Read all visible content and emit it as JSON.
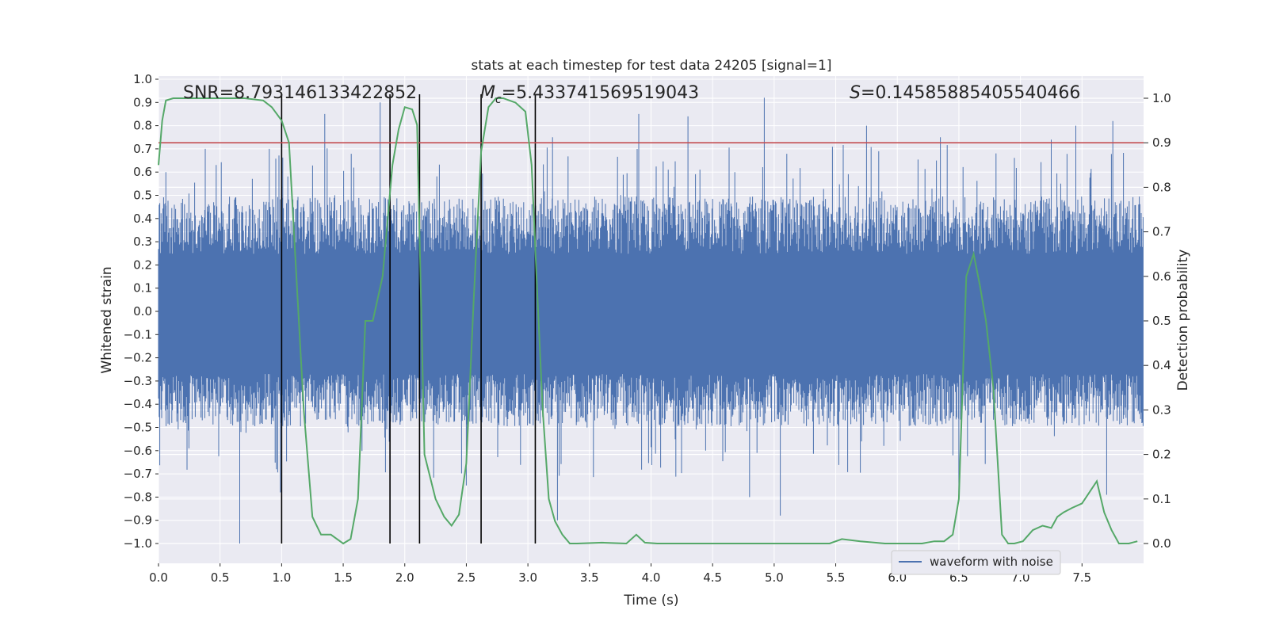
{
  "chart_data": {
    "type": "line",
    "title": "stats at each timestep for test data 24205 [signal=1]",
    "xlabel": "Time (s)",
    "ylabel": "Whitened strain",
    "y2label": "Detection probability",
    "xlim": [
      0.0,
      8.0
    ],
    "ylim": [
      -1.0,
      1.0
    ],
    "y2lim": [
      0.0,
      1.0
    ],
    "grid": true,
    "legend_position": "lower-right",
    "x_ticks": [
      "0.0",
      "0.5",
      "1.0",
      "1.5",
      "2.0",
      "2.5",
      "3.0",
      "3.5",
      "4.0",
      "4.5",
      "5.0",
      "5.5",
      "6.0",
      "6.5",
      "7.0",
      "7.5"
    ],
    "y_ticks": [
      "1.0",
      "0.9",
      "0.8",
      "0.7",
      "0.6",
      "0.5",
      "0.4",
      "0.3",
      "0.2",
      "0.1",
      "0.0",
      "−0.1",
      "−0.2",
      "−0.3",
      "−0.4",
      "−0.5",
      "−0.6",
      "−0.7",
      "−0.8",
      "−0.9",
      "−1.0"
    ],
    "y2_ticks": [
      "1.0",
      "0.9",
      "0.8",
      "0.7",
      "0.6",
      "0.5",
      "0.4",
      "0.3",
      "0.2",
      "0.1",
      "0.0"
    ],
    "annotations": {
      "snr": "SNR=8.793146133422852",
      "mc_symbol": "M",
      "mc_sub": "c",
      "mc_value": "=5.433741569519043",
      "s_symbol": "S",
      "s_value": "=0.14585885405540466"
    },
    "threshold": {
      "y2": 0.9,
      "color": "#c44e52"
    },
    "vertical_markers_x": [
      1.0,
      1.88,
      2.12,
      2.62,
      3.06
    ],
    "waveform": {
      "name": "waveform with noise",
      "color": "#4c72b0",
      "duration_s": 8.0,
      "typical_envelope": 0.45,
      "peaks": [
        {
          "x": 0.06,
          "y": 0.6
        },
        {
          "x": 0.38,
          "y": 0.7
        },
        {
          "x": 0.66,
          "y": -1.0
        },
        {
          "x": 0.9,
          "y": 0.7
        },
        {
          "x": 0.99,
          "y": -0.78
        },
        {
          "x": 1.35,
          "y": 0.85
        },
        {
          "x": 1.8,
          "y": 0.9
        },
        {
          "x": 1.88,
          "y": 0.9
        },
        {
          "x": 2.5,
          "y": -0.75
        },
        {
          "x": 3.2,
          "y": 0.75
        },
        {
          "x": 3.24,
          "y": -0.9
        },
        {
          "x": 3.9,
          "y": 0.85
        },
        {
          "x": 4.3,
          "y": 0.84
        },
        {
          "x": 4.8,
          "y": -0.8
        },
        {
          "x": 4.92,
          "y": 0.92
        },
        {
          "x": 5.05,
          "y": -0.88
        },
        {
          "x": 5.75,
          "y": 0.8
        },
        {
          "x": 6.35,
          "y": 0.75
        },
        {
          "x": 6.5,
          "y": -0.78
        },
        {
          "x": 7.25,
          "y": 0.74
        },
        {
          "x": 7.45,
          "y": 0.8
        },
        {
          "x": 7.7,
          "y": -0.79
        },
        {
          "x": 7.75,
          "y": 0.82
        }
      ]
    },
    "series": [
      {
        "name": "Detection probability",
        "axis": "y2",
        "color": "#55a868",
        "x": [
          0.0,
          0.03,
          0.06,
          0.12,
          0.2,
          0.3,
          0.5,
          0.7,
          0.85,
          0.92,
          1.0,
          1.06,
          1.12,
          1.18,
          1.25,
          1.32,
          1.4,
          1.5,
          1.56,
          1.62,
          1.68,
          1.74,
          1.82,
          1.9,
          1.95,
          2.0,
          2.06,
          2.1,
          2.16,
          2.25,
          2.32,
          2.38,
          2.44,
          2.5,
          2.56,
          2.62,
          2.68,
          2.74,
          2.8,
          2.9,
          2.98,
          3.03,
          3.07,
          3.12,
          3.17,
          3.22,
          3.28,
          3.34,
          3.4,
          3.6,
          3.8,
          3.88,
          3.95,
          4.05,
          4.3,
          4.5,
          5.0,
          5.45,
          5.55,
          5.7,
          5.9,
          6.2,
          6.3,
          6.38,
          6.45,
          6.5,
          6.56,
          6.62,
          6.67,
          6.72,
          6.78,
          6.85,
          6.9,
          6.95,
          7.02,
          7.1,
          7.18,
          7.25,
          7.3,
          7.35,
          7.42,
          7.5,
          7.62,
          7.68,
          7.74,
          7.8,
          7.88,
          7.95
        ],
        "y": [
          0.85,
          0.95,
          0.995,
          1.0,
          1.0,
          1.0,
          1.0,
          1.0,
          0.995,
          0.98,
          0.95,
          0.9,
          0.6,
          0.3,
          0.06,
          0.02,
          0.02,
          0.0,
          0.01,
          0.1,
          0.5,
          0.5,
          0.6,
          0.85,
          0.93,
          0.98,
          0.975,
          0.94,
          0.2,
          0.1,
          0.06,
          0.04,
          0.065,
          0.18,
          0.55,
          0.88,
          0.98,
          1.0,
          1.0,
          0.99,
          0.97,
          0.85,
          0.6,
          0.3,
          0.1,
          0.05,
          0.02,
          0.0,
          0.0,
          0.002,
          0.0,
          0.02,
          0.002,
          0.0,
          0.0,
          0.0,
          0.0,
          0.0,
          0.01,
          0.005,
          0.0,
          0.0,
          0.005,
          0.005,
          0.02,
          0.1,
          0.6,
          0.65,
          0.58,
          0.5,
          0.35,
          0.02,
          0.0,
          0.0,
          0.005,
          0.03,
          0.04,
          0.035,
          0.06,
          0.07,
          0.08,
          0.09,
          0.14,
          0.07,
          0.03,
          0.0,
          0.0,
          0.005
        ]
      }
    ]
  }
}
